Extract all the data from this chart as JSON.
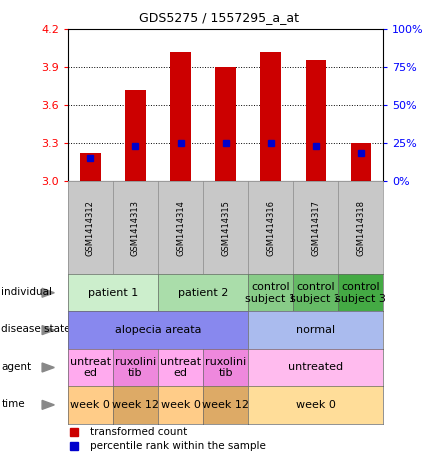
{
  "title": "GDS5275 / 1557295_a_at",
  "samples": [
    "GSM1414312",
    "GSM1414313",
    "GSM1414314",
    "GSM1414315",
    "GSM1414316",
    "GSM1414317",
    "GSM1414318"
  ],
  "bar_values": [
    3.22,
    3.72,
    4.02,
    3.9,
    4.02,
    3.96,
    3.3
  ],
  "percentile_values": [
    3.18,
    3.28,
    3.3,
    3.3,
    3.3,
    3.28,
    3.22
  ],
  "y_min": 3.0,
  "y_max": 4.2,
  "y_ticks": [
    3.0,
    3.3,
    3.6,
    3.9,
    4.2
  ],
  "y_right_ticks": [
    0,
    25,
    50,
    75,
    100
  ],
  "bar_color": "#cc0000",
  "percentile_color": "#0000cc",
  "sample_bg_color": "#c8c8c8",
  "individual_row": {
    "label": "individual",
    "cells": [
      {
        "text": "patient 1",
        "span": [
          0,
          2
        ],
        "color": "#cceecc"
      },
      {
        "text": "patient 2",
        "span": [
          2,
          4
        ],
        "color": "#aaddaa"
      },
      {
        "text": "control\nsubject 1",
        "span": [
          4,
          5
        ],
        "color": "#88cc88"
      },
      {
        "text": "control\nsubject 2",
        "span": [
          5,
          6
        ],
        "color": "#66bb66"
      },
      {
        "text": "control\nsubject 3",
        "span": [
          6,
          7
        ],
        "color": "#44aa44"
      }
    ]
  },
  "disease_row": {
    "label": "disease state",
    "cells": [
      {
        "text": "alopecia areata",
        "span": [
          0,
          4
        ],
        "color": "#8888ee"
      },
      {
        "text": "normal",
        "span": [
          4,
          7
        ],
        "color": "#aabbee"
      }
    ]
  },
  "agent_row": {
    "label": "agent",
    "cells": [
      {
        "text": "untreat\ned",
        "span": [
          0,
          1
        ],
        "color": "#ffaaee"
      },
      {
        "text": "ruxolini\ntib",
        "span": [
          1,
          2
        ],
        "color": "#ee88dd"
      },
      {
        "text": "untreat\ned",
        "span": [
          2,
          3
        ],
        "color": "#ffaaee"
      },
      {
        "text": "ruxolini\ntib",
        "span": [
          3,
          4
        ],
        "color": "#ee88dd"
      },
      {
        "text": "untreated",
        "span": [
          4,
          7
        ],
        "color": "#ffbbee"
      }
    ]
  },
  "time_row": {
    "label": "time",
    "cells": [
      {
        "text": "week 0",
        "span": [
          0,
          1
        ],
        "color": "#ffcc88"
      },
      {
        "text": "week 12",
        "span": [
          1,
          2
        ],
        "color": "#ddaa66"
      },
      {
        "text": "week 0",
        "span": [
          2,
          3
        ],
        "color": "#ffcc88"
      },
      {
        "text": "week 12",
        "span": [
          3,
          4
        ],
        "color": "#ddaa66"
      },
      {
        "text": "week 0",
        "span": [
          4,
          7
        ],
        "color": "#ffdd99"
      }
    ]
  }
}
